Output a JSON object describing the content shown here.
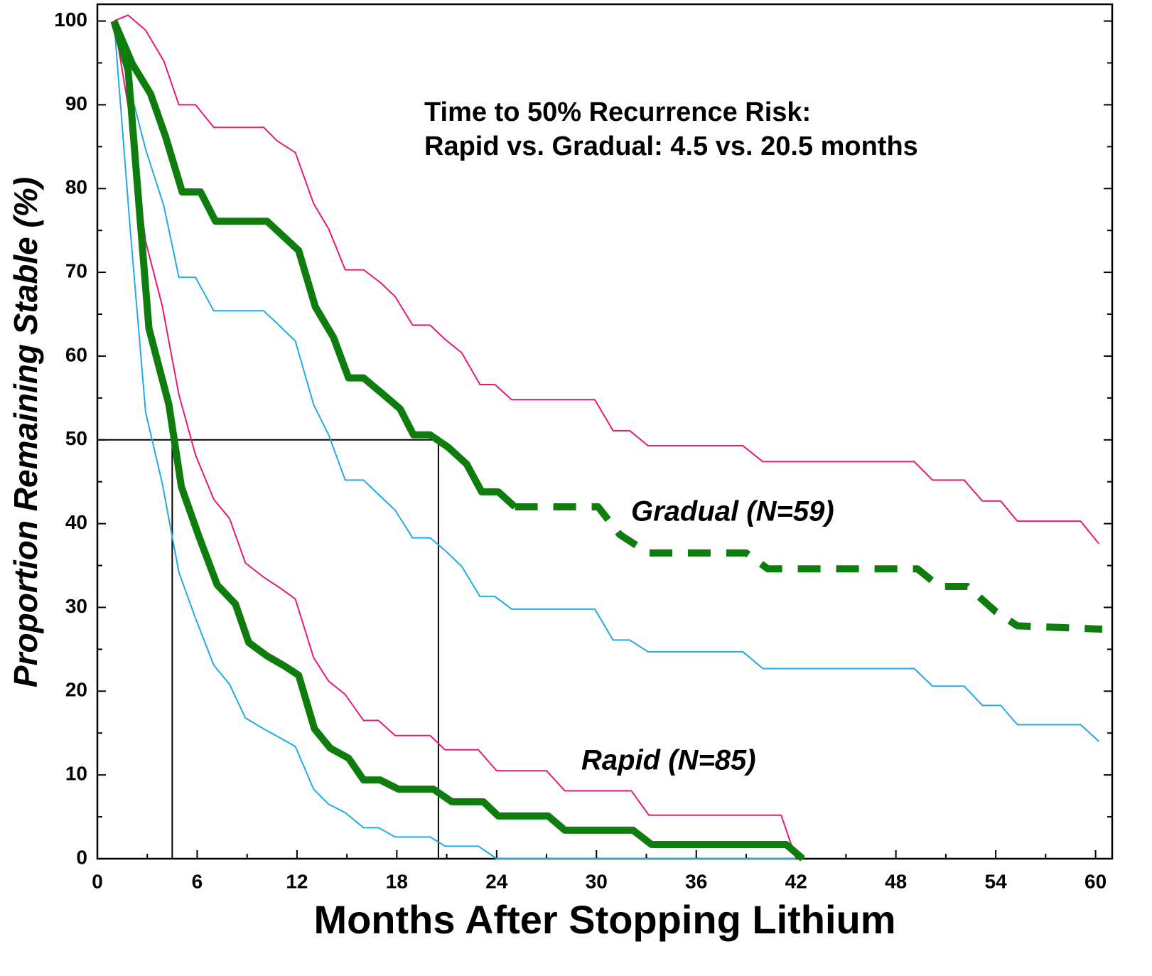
{
  "chart_data": {
    "type": "line",
    "annotations": [
      "Time to 50% Recurrence Risk:",
      "Rapid vs. Gradual: 4.5 vs. 20.5 months",
      "Gradual (N=59)",
      "Rapid (N=85)"
    ],
    "xlabel": "Months After Stopping Lithium",
    "ylabel": "Proportion Remaining Stable (%)",
    "xlim": [
      0,
      61
    ],
    "ylim": [
      0,
      102
    ],
    "xticks": [
      0,
      6,
      12,
      18,
      24,
      30,
      36,
      42,
      48,
      54,
      60
    ],
    "yticks": [
      0,
      10,
      20,
      30,
      40,
      50,
      60,
      70,
      80,
      90,
      100
    ],
    "xminor_ticks": [
      3,
      9,
      15,
      21,
      27,
      33,
      39,
      45,
      51,
      57
    ],
    "yminor_ticks": [
      5,
      15,
      25,
      35,
      45,
      55,
      65,
      75,
      85,
      95
    ],
    "reference": {
      "y": 50,
      "x": [
        4.5,
        20.5
      ]
    },
    "series": [
      {
        "color": "#e6197a",
        "line_style": "thin",
        "x": [
          1,
          1.85,
          2.9,
          4,
          4.9,
          5.9,
          7,
          10,
          10.8,
          11.9,
          13,
          13.9,
          14.9,
          16,
          17,
          17.9,
          18.95,
          20,
          20.9,
          21.9,
          23,
          23.9,
          24.9,
          29.9,
          31,
          32,
          33.1,
          38.8,
          40,
          49.1,
          50.2,
          52.1,
          53.2,
          54.3,
          55.3,
          59.1,
          60.2
        ],
        "values": [
          100,
          100.7,
          98.9,
          95.2,
          90,
          90,
          87.3,
          87.3,
          85.7,
          84.3,
          78.2,
          75.2,
          70.3,
          70.3,
          68.8,
          67.1,
          63.7,
          63.7,
          62,
          60.4,
          56.6,
          56.6,
          54.8,
          54.8,
          51.1,
          51.1,
          49.3,
          49.3,
          47.4,
          47.4,
          45.2,
          45.2,
          42.7,
          42.7,
          40.3,
          40.3,
          37.6
        ]
      },
      {
        "color": "#22aae6",
        "line_style": "thin",
        "x": [
          1,
          1.85,
          2.9,
          4,
          4.9,
          5.9,
          7,
          10,
          10.8,
          11.9,
          13,
          13.9,
          14.9,
          16,
          17,
          17.9,
          18.95,
          20,
          20.9,
          21.9,
          23,
          23.9,
          24.9,
          29.9,
          31,
          32,
          33.1,
          38.8,
          40,
          49.1,
          50.2,
          52.1,
          53.2,
          54.3,
          55.3,
          59.1,
          60.2
        ],
        "values": [
          100,
          92.8,
          84.7,
          77.9,
          69.4,
          69.4,
          65.4,
          65.4,
          63.9,
          61.8,
          54.2,
          50.6,
          45.2,
          45.2,
          43.3,
          41.6,
          38.3,
          38.3,
          36.8,
          34.9,
          31.3,
          31.3,
          29.8,
          29.8,
          26.1,
          26.1,
          24.7,
          24.7,
          22.7,
          22.7,
          20.6,
          20.6,
          18.3,
          18.3,
          16,
          16,
          14
        ]
      },
      {
        "color": "#e6197a",
        "line_style": "thin",
        "x": [
          1,
          2,
          2.9,
          3.9,
          4.9,
          5.9,
          7,
          7.95,
          8.9,
          10,
          11,
          11.9,
          13,
          13.9,
          14.9,
          16,
          16.9,
          17.9,
          20,
          20.9,
          22.9,
          24,
          27,
          28.1,
          32.1,
          33.15,
          41.1,
          42
        ],
        "values": [
          100,
          88.1,
          73.7,
          66,
          55.4,
          48.2,
          42.9,
          40.6,
          35.3,
          33.6,
          32.3,
          31,
          24,
          21.2,
          19.6,
          16.5,
          16.5,
          14.7,
          14.7,
          13,
          13,
          10.5,
          10.5,
          8.1,
          8.1,
          5.2,
          5.2,
          0
        ]
      },
      {
        "color": "#22aae6",
        "line_style": "thin",
        "x": [
          1,
          2,
          2.9,
          3.9,
          4.9,
          5.9,
          7,
          7.95,
          8.9,
          10,
          11,
          11.9,
          13,
          13.9,
          14.9,
          16,
          16.9,
          17.9,
          20,
          20.9,
          22.9,
          24,
          42
        ],
        "values": [
          100,
          74.5,
          53.3,
          44.8,
          34.2,
          28.7,
          23.1,
          20.8,
          16.8,
          15.5,
          14.4,
          13.4,
          8.3,
          6.5,
          5.5,
          3.7,
          3.7,
          2.6,
          2.6,
          1.5,
          1.5,
          0,
          0
        ]
      },
      {
        "color": "#0e7d0e",
        "line_style": "bold",
        "x": [
          1,
          2.1,
          3.2,
          4.1,
          5.1,
          6.2,
          7.1,
          10.2,
          12.1,
          13.1,
          14.2,
          15.1,
          16,
          17.2,
          18.2,
          19,
          20,
          21.1,
          22.2,
          23.1,
          24.1,
          25.1
        ],
        "values": [
          100,
          94.9,
          91.3,
          86.2,
          79.6,
          79.6,
          76.1,
          76.1,
          72.6,
          65.9,
          62.2,
          57.4,
          57.4,
          55.4,
          53.7,
          50.6,
          50.6,
          49.1,
          47.1,
          43.8,
          43.8,
          42
        ]
      },
      {
        "color": "#0e7d0e",
        "line_style": "bold-dashed",
        "x": [
          25.1,
          30.1,
          31.4,
          33.1,
          39,
          40.3,
          49.3,
          50.6,
          52.3,
          54,
          55.3,
          60.4
        ],
        "values": [
          42,
          42,
          38.7,
          36.5,
          36.5,
          34.6,
          34.6,
          32.5,
          32.5,
          29.5,
          27.8,
          27.4
        ]
      },
      {
        "color": "#0e7d0e",
        "line_style": "bold",
        "x": [
          1,
          1.85,
          3.1,
          4.3,
          5.05,
          6.1,
          7.2,
          8.3,
          9.1,
          10.2,
          11.25,
          12.1,
          13.05,
          14,
          15.1,
          16,
          17,
          18.1,
          20.2,
          21.3,
          23.2,
          24.1,
          27.1,
          28.1,
          32.2,
          33.3,
          41.4,
          42.4
        ],
        "values": [
          100,
          94.1,
          63.3,
          54.2,
          44.4,
          38.5,
          32.7,
          30.4,
          25.8,
          24.2,
          23,
          21.9,
          15.5,
          13.2,
          12,
          9.4,
          9.4,
          8.3,
          8.3,
          6.8,
          6.8,
          5.1,
          5.1,
          3.4,
          3.4,
          1.7,
          1.7,
          0
        ]
      }
    ]
  }
}
